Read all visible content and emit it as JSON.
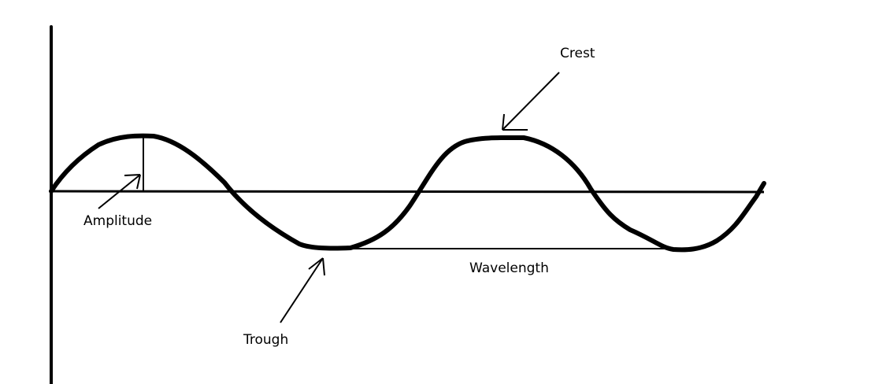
{
  "labels": {
    "crest": "Crest",
    "amplitude": "Amplitude",
    "wavelength": "Wavelength",
    "trough": "Trough"
  },
  "colors": {
    "ink": "#000000",
    "background": "#ffffff"
  }
}
